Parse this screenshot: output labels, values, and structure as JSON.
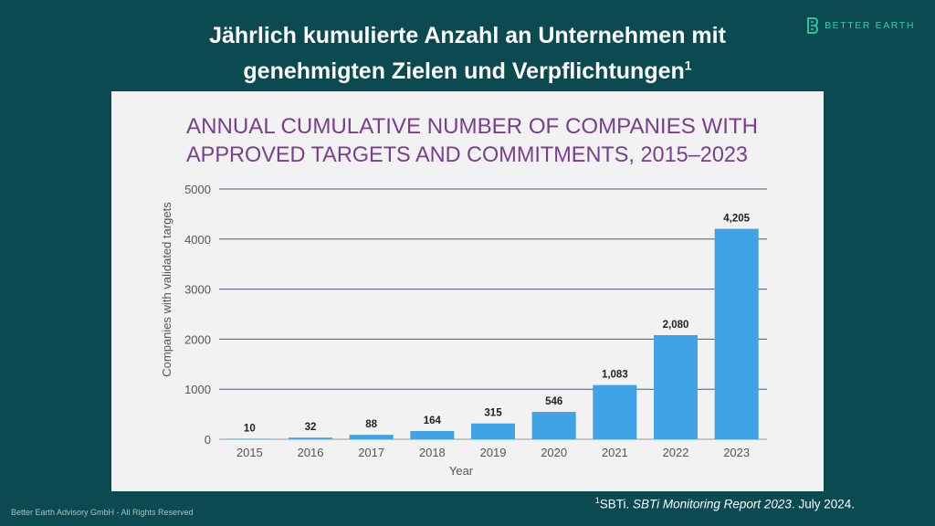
{
  "slide": {
    "title_line1": "Jährlich kumulierte Anzahl an Unternehmen mit",
    "title_line2": "genehmigten Zielen und Verpflichtungen",
    "title_footnote_mark": "1"
  },
  "brand": {
    "name": "BETTER EARTH",
    "icon": "better-earth-logo-icon",
    "color": "#2fd0a8"
  },
  "chart_data": {
    "type": "bar",
    "title": "ANNUAL CUMULATIVE NUMBER OF COMPANIES WITH APPROVED TARGETS AND COMMITMENTS, 2015–2023",
    "title_line1": "ANNUAL CUMULATIVE NUMBER OF COMPANIES WITH",
    "title_line2": "APPROVED TARGETS AND COMMITMENTS, 2015–2023",
    "xlabel": "Year",
    "ylabel": "Companies with validated targets",
    "categories": [
      "2015",
      "2016",
      "2017",
      "2018",
      "2019",
      "2020",
      "2021",
      "2022",
      "2023"
    ],
    "values": [
      10,
      32,
      88,
      164,
      315,
      546,
      1083,
      2080,
      4205
    ],
    "data_labels": [
      "10",
      "32",
      "88",
      "164",
      "315",
      "546",
      "1,083",
      "2,080",
      "4,205"
    ],
    "ylim": [
      0,
      5000
    ],
    "yticks": [
      0,
      1000,
      2000,
      3000,
      4000,
      5000
    ],
    "grid": true,
    "bar_color": "#3fa3e5",
    "title_color": "#7a3e8e"
  },
  "footnote": {
    "mark": "1",
    "text_prefix": "SBTi. ",
    "text_italic": "SBTi Monitoring Report 2023",
    "text_suffix": ". July 2024."
  },
  "copyright": "Better Earth Advisory GmbH - All Rights Reserved",
  "colors": {
    "background": "#0b4a50",
    "panel": "#f2f2f2"
  }
}
